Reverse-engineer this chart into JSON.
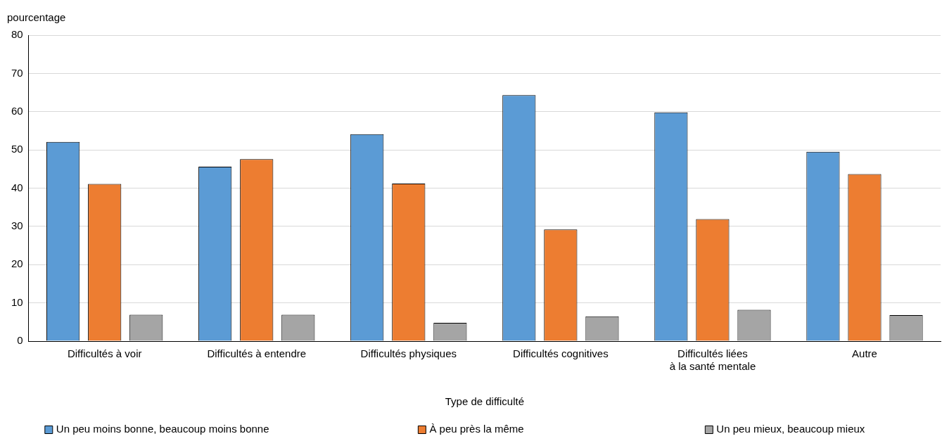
{
  "chart_data": {
    "type": "bar",
    "ylabel": "pourcentage",
    "xlabel": "Type de difficulté",
    "categories": [
      "Difficultés à voir",
      "Difficultés à entendre",
      "Difficultés physiques",
      "Difficultés cognitives",
      "Difficultés liées\nà la santé mentale",
      "Autre"
    ],
    "series": [
      {
        "name": "Un peu moins bonne, beaucoup moins bonne",
        "color": "#5b9bd5",
        "values": [
          52.1,
          45.6,
          54.1,
          64.3,
          59.8,
          49.5
        ]
      },
      {
        "name": "À peu près la même",
        "color": "#ed7d31",
        "values": [
          41.1,
          47.6,
          41.2,
          29.2,
          31.9,
          43.7
        ]
      },
      {
        "name": "Un peu mieux, beaucoup mieux",
        "color": "#a5a5a5",
        "values": [
          6.9,
          6.9,
          4.8,
          6.5,
          8.2,
          6.8
        ]
      }
    ],
    "ylim": [
      0,
      80
    ],
    "yticks": [
      0,
      10,
      20,
      30,
      40,
      50,
      60,
      70,
      80
    ],
    "grid": "y",
    "legend": "bottom"
  }
}
